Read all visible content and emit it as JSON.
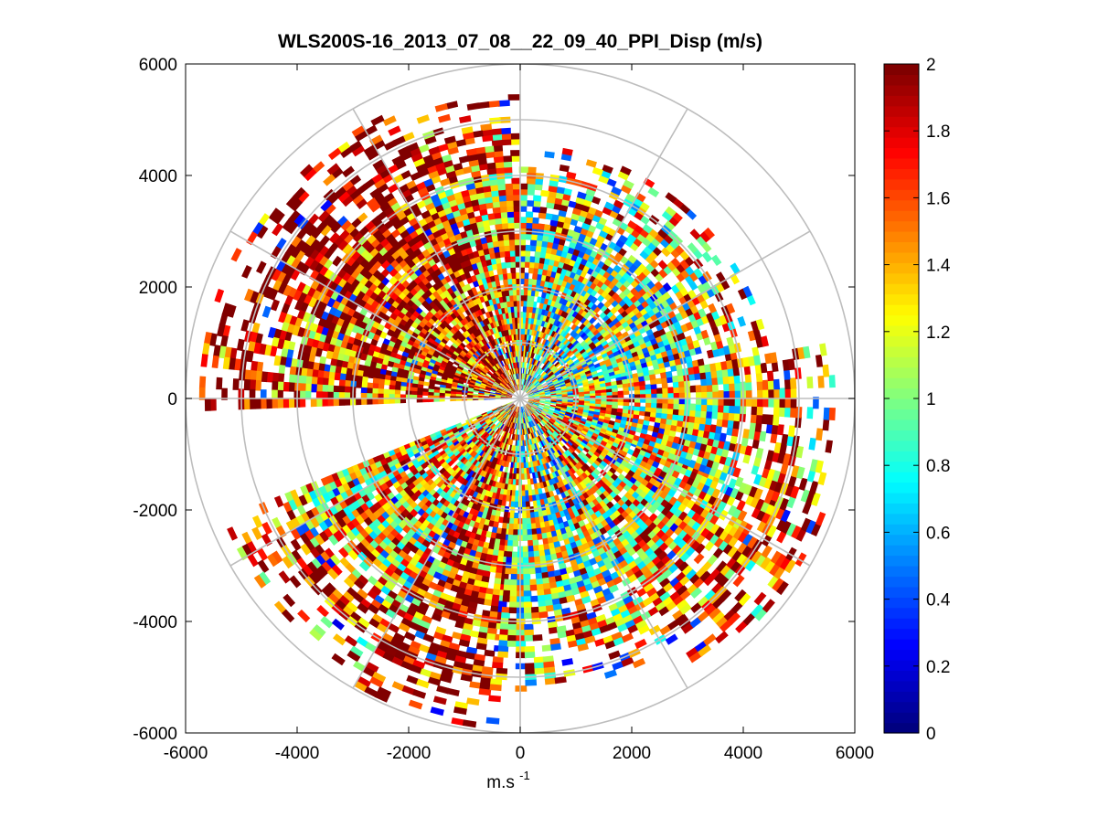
{
  "chart_data": {
    "type": "heatmap",
    "subtype": "polar-ppi",
    "title": "WLS200S-16_2013_07_08__22_09_40_PPI_Disp (m/s)",
    "xlabel_base": "m.s",
    "xlabel_exp": "-1",
    "xlim": [
      -6000,
      6000
    ],
    "ylim": [
      -6000,
      6000
    ],
    "xticks": [
      -6000,
      -4000,
      -2000,
      0,
      2000,
      4000,
      6000
    ],
    "yticks": [
      -6000,
      -4000,
      -2000,
      0,
      2000,
      4000,
      6000
    ],
    "xtick_labels": [
      "-6000",
      "-4000",
      "-2000",
      "0",
      "2000",
      "4000",
      "6000"
    ],
    "ytick_labels": [
      "-6000",
      "-4000",
      "-2000",
      "0",
      "2000",
      "4000",
      "6000"
    ],
    "range_rings_m": [
      1000,
      2000,
      3000,
      4000,
      5000,
      6000
    ],
    "spoke_angles_deg": [
      0,
      30,
      60,
      90,
      120,
      150,
      180,
      210,
      240,
      270,
      300,
      330
    ],
    "colorbar": {
      "min": 0,
      "max": 2,
      "ticks": [
        0,
        0.2,
        0.4,
        0.6,
        0.8,
        1,
        1.2,
        1.4,
        1.6,
        1.8,
        2
      ],
      "tick_labels": [
        "0",
        "0.2",
        "0.4",
        "0.6",
        "0.8",
        "1",
        "1.2",
        "1.4",
        "1.6",
        "1.8",
        "2"
      ],
      "colormap": "jet"
    },
    "sectors": [
      {
        "start_deg": 10,
        "end_deg": 90,
        "max_range_m": 4500,
        "mean_value": 1.0
      },
      {
        "start_deg": 90,
        "end_deg": 112,
        "max_range_m": 5400,
        "mean_value": 1.4
      },
      {
        "start_deg": 112,
        "end_deg": 150,
        "max_range_m": 5600,
        "mean_value": 1.7
      },
      {
        "start_deg": 150,
        "end_deg": 182,
        "max_range_m": 5700,
        "mean_value": 1.6
      },
      {
        "start_deg": 202,
        "end_deg": 240,
        "max_range_m": 5700,
        "mean_value": 1.3
      },
      {
        "start_deg": 240,
        "end_deg": 265,
        "max_range_m": 5900,
        "mean_value": 1.6
      },
      {
        "start_deg": 265,
        "end_deg": 303,
        "max_range_m": 5200,
        "mean_value": 1.0
      },
      {
        "start_deg": 303,
        "end_deg": 338,
        "max_range_m": 5800,
        "mean_value": 1.3
      },
      {
        "start_deg": 338,
        "end_deg": 370,
        "max_range_m": 5600,
        "mean_value": 1.2
      }
    ]
  }
}
